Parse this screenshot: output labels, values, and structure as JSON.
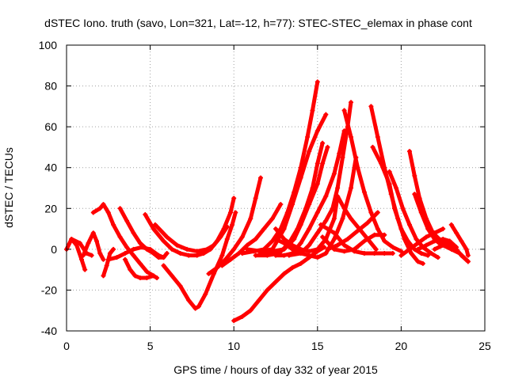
{
  "chart_data": {
    "type": "line",
    "title": "dSTEC Iono. truth (savo, Lon=321, Lat=-12, h=77): STEC-STEC_elemax in phase cont",
    "xlabel": "GPS time / hours of day 332 of year 2015",
    "ylabel": "dSTEC  / TECUs",
    "xlim": [
      0,
      25
    ],
    "ylim": [
      -40,
      100
    ],
    "xticks": [
      0,
      5,
      10,
      15,
      20,
      25
    ],
    "yticks": [
      -40,
      -20,
      0,
      20,
      40,
      60,
      80,
      100
    ],
    "grid": true,
    "marker": "plus",
    "color": "#ff0000",
    "series": [
      {
        "points": [
          [
            0.0,
            0
          ],
          [
            0.3,
            5
          ],
          [
            0.6,
            2
          ],
          [
            0.9,
            -5
          ],
          [
            1.1,
            -10
          ]
        ]
      },
      {
        "points": [
          [
            0.3,
            5
          ],
          [
            0.8,
            3
          ],
          [
            1.2,
            -2
          ],
          [
            1.5,
            -3
          ]
        ]
      },
      {
        "points": [
          [
            1.0,
            -3
          ],
          [
            1.3,
            3
          ],
          [
            1.6,
            8
          ],
          [
            1.8,
            4
          ],
          [
            2.0,
            -2
          ],
          [
            2.2,
            -5
          ]
        ]
      },
      {
        "points": [
          [
            1.6,
            18
          ],
          [
            2.0,
            20
          ],
          [
            2.2,
            22
          ],
          [
            2.5,
            18
          ],
          [
            2.8,
            12
          ],
          [
            3.2,
            6
          ],
          [
            3.6,
            1
          ],
          [
            4.0,
            -3
          ],
          [
            4.4,
            -7
          ],
          [
            4.8,
            -11
          ],
          [
            5.2,
            -13
          ]
        ]
      },
      {
        "points": [
          [
            2.2,
            -13
          ],
          [
            2.4,
            -8
          ],
          [
            2.6,
            -2
          ],
          [
            2.8,
            0
          ]
        ]
      },
      {
        "points": [
          [
            3.2,
            20
          ],
          [
            3.6,
            14
          ],
          [
            4.0,
            8
          ],
          [
            4.4,
            3
          ],
          [
            4.8,
            0
          ],
          [
            5.2,
            -2
          ],
          [
            5.5,
            -4
          ],
          [
            5.8,
            -4
          ],
          [
            6.0,
            -2
          ]
        ]
      },
      {
        "points": [
          [
            3.5,
            -5
          ],
          [
            3.8,
            -10
          ],
          [
            4.1,
            -13
          ],
          [
            4.4,
            -14
          ],
          [
            4.8,
            -14
          ],
          [
            5.2,
            -13
          ],
          [
            5.4,
            -14
          ]
        ]
      },
      {
        "points": [
          [
            2.5,
            -5
          ],
          [
            3.0,
            -4
          ],
          [
            3.5,
            -2
          ],
          [
            4.0,
            0
          ],
          [
            4.5,
            1
          ],
          [
            5.0,
            0
          ],
          [
            5.5,
            -3
          ],
          [
            5.8,
            -4
          ]
        ]
      },
      {
        "points": [
          [
            4.7,
            17
          ],
          [
            5.2,
            10
          ],
          [
            5.8,
            4
          ],
          [
            6.3,
            0
          ],
          [
            6.8,
            -2
          ],
          [
            7.3,
            -3
          ],
          [
            7.8,
            -3
          ],
          [
            8.2,
            -2
          ],
          [
            8.6,
            0
          ],
          [
            9.0,
            4
          ],
          [
            9.4,
            10
          ],
          [
            9.8,
            18
          ],
          [
            10.0,
            25
          ]
        ]
      },
      {
        "points": [
          [
            5.8,
            -8
          ],
          [
            6.3,
            -13
          ],
          [
            6.8,
            -18
          ],
          [
            7.3,
            -25
          ],
          [
            7.7,
            -29
          ],
          [
            7.9,
            -28
          ],
          [
            8.3,
            -22
          ],
          [
            8.8,
            -12
          ],
          [
            9.3,
            -3
          ],
          [
            9.6,
            5
          ],
          [
            9.9,
            12
          ],
          [
            10.1,
            18
          ]
        ]
      },
      {
        "points": [
          [
            5.3,
            12
          ],
          [
            6.0,
            6
          ],
          [
            6.6,
            2
          ],
          [
            7.2,
            0
          ],
          [
            7.8,
            -1
          ],
          [
            8.4,
            0
          ],
          [
            8.8,
            2
          ],
          [
            9.2,
            6
          ],
          [
            9.6,
            11
          ]
        ]
      },
      {
        "points": [
          [
            8.5,
            -12
          ],
          [
            9.0,
            -9
          ],
          [
            9.5,
            -5
          ],
          [
            10.0,
            0
          ],
          [
            10.5,
            6
          ],
          [
            11.0,
            15
          ],
          [
            11.3,
            25
          ],
          [
            11.6,
            35
          ]
        ]
      },
      {
        "points": [
          [
            9.3,
            -8
          ],
          [
            9.8,
            -5
          ],
          [
            10.3,
            -2
          ],
          [
            10.8,
            2
          ],
          [
            11.3,
            5
          ],
          [
            11.8,
            10
          ],
          [
            12.3,
            15
          ],
          [
            12.8,
            22
          ]
        ]
      },
      {
        "points": [
          [
            10.0,
            -35
          ],
          [
            10.5,
            -33
          ],
          [
            11.0,
            -30
          ],
          [
            11.5,
            -25
          ],
          [
            12.0,
            -20
          ],
          [
            12.5,
            -16
          ],
          [
            13.0,
            -12
          ],
          [
            13.5,
            -9
          ],
          [
            14.0,
            -7
          ],
          [
            14.5,
            -4
          ],
          [
            15.0,
            -1
          ],
          [
            15.4,
            1
          ]
        ]
      },
      {
        "points": [
          [
            10.5,
            -2
          ],
          [
            11.2,
            -1
          ],
          [
            11.8,
            0
          ],
          [
            12.3,
            4
          ],
          [
            12.8,
            10
          ],
          [
            13.2,
            18
          ],
          [
            13.6,
            28
          ],
          [
            14.0,
            40
          ],
          [
            14.4,
            55
          ],
          [
            14.7,
            68
          ],
          [
            15.0,
            82
          ]
        ]
      },
      {
        "points": [
          [
            10.8,
            0
          ],
          [
            11.6,
            -1
          ],
          [
            12.3,
            0
          ],
          [
            13.0,
            10
          ],
          [
            13.5,
            22
          ],
          [
            14.0,
            35
          ],
          [
            14.5,
            48
          ],
          [
            15.0,
            58
          ],
          [
            15.5,
            66
          ]
        ]
      },
      {
        "points": [
          [
            11.3,
            -3
          ],
          [
            12.0,
            -3
          ],
          [
            12.7,
            -2
          ],
          [
            13.3,
            3
          ],
          [
            13.8,
            10
          ],
          [
            14.3,
            20
          ],
          [
            14.7,
            30
          ],
          [
            15.0,
            42
          ],
          [
            15.3,
            52
          ]
        ]
      },
      {
        "points": [
          [
            11.6,
            -2
          ],
          [
            12.3,
            -1
          ],
          [
            13.0,
            0
          ],
          [
            13.6,
            5
          ],
          [
            14.0,
            12
          ],
          [
            14.5,
            22
          ],
          [
            15.0,
            32
          ],
          [
            15.3,
            42
          ],
          [
            15.6,
            50
          ]
        ]
      },
      {
        "points": [
          [
            12.5,
            -3
          ],
          [
            13.0,
            -3
          ],
          [
            13.5,
            -2
          ],
          [
            14.0,
            3
          ],
          [
            14.5,
            10
          ],
          [
            15.0,
            18
          ],
          [
            15.5,
            26
          ],
          [
            16.0,
            37
          ],
          [
            16.3,
            47
          ],
          [
            16.6,
            58
          ]
        ]
      },
      {
        "points": [
          [
            13.3,
            -3
          ],
          [
            14.0,
            -2
          ],
          [
            14.5,
            2
          ],
          [
            15.0,
            8
          ],
          [
            15.5,
            14
          ],
          [
            15.9,
            20
          ],
          [
            16.2,
            30
          ],
          [
            16.5,
            45
          ],
          [
            16.8,
            60
          ],
          [
            17.0,
            72
          ]
        ]
      },
      {
        "points": [
          [
            12.5,
            5
          ],
          [
            13.0,
            3
          ],
          [
            13.5,
            0
          ],
          [
            14.0,
            -2
          ],
          [
            14.5,
            -3
          ],
          [
            15.0,
            -4
          ],
          [
            15.5,
            -2
          ],
          [
            16.0,
            5
          ],
          [
            16.5,
            15
          ],
          [
            17.0,
            30
          ],
          [
            17.3,
            45
          ]
        ]
      },
      {
        "points": [
          [
            12.5,
            10
          ],
          [
            13.0,
            5
          ],
          [
            13.5,
            2
          ],
          [
            14.0,
            0
          ],
          [
            14.5,
            -1
          ],
          [
            15.0,
            0
          ],
          [
            15.5,
            5
          ],
          [
            16.0,
            15
          ],
          [
            16.2,
            26
          ],
          [
            16.6,
            20
          ],
          [
            17.0,
            15
          ],
          [
            17.5,
            10
          ],
          [
            18.0,
            5
          ],
          [
            18.5,
            0
          ]
        ]
      },
      {
        "points": [
          [
            15.2,
            12
          ],
          [
            15.6,
            10
          ],
          [
            16.0,
            8
          ],
          [
            16.6,
            2
          ],
          [
            17.2,
            -1
          ],
          [
            17.8,
            -2
          ],
          [
            18.4,
            -2
          ],
          [
            19.0,
            -2
          ],
          [
            19.5,
            -2
          ]
        ]
      },
      {
        "points": [
          [
            15.6,
            0
          ],
          [
            16.2,
            2
          ],
          [
            16.8,
            5
          ],
          [
            17.4,
            9
          ],
          [
            18.0,
            13
          ],
          [
            18.6,
            18
          ]
        ]
      },
      {
        "points": [
          [
            15.3,
            6
          ],
          [
            16.0,
            0
          ],
          [
            16.6,
            -1
          ],
          [
            17.2,
            0
          ],
          [
            17.8,
            4
          ],
          [
            18.4,
            7
          ],
          [
            19.0,
            7
          ]
        ]
      },
      {
        "points": [
          [
            16.6,
            68
          ],
          [
            17.0,
            55
          ],
          [
            17.4,
            40
          ],
          [
            17.8,
            28
          ],
          [
            18.2,
            18
          ],
          [
            18.6,
            10
          ],
          [
            19.0,
            4
          ],
          [
            19.5,
            1
          ],
          [
            20.0,
            -1
          ]
        ]
      },
      {
        "points": [
          [
            18.2,
            70
          ],
          [
            18.6,
            55
          ],
          [
            19.0,
            40
          ],
          [
            19.4,
            27
          ],
          [
            19.8,
            15
          ],
          [
            20.2,
            5
          ],
          [
            20.6,
            -2
          ],
          [
            21.0,
            -6
          ],
          [
            21.3,
            -7
          ]
        ]
      },
      {
        "points": [
          [
            18.3,
            50
          ],
          [
            18.8,
            42
          ],
          [
            19.3,
            32
          ],
          [
            19.6,
            20
          ],
          [
            20.0,
            10
          ],
          [
            20.4,
            4
          ],
          [
            20.8,
            0
          ],
          [
            21.2,
            -2
          ],
          [
            21.6,
            -3
          ]
        ]
      },
      {
        "points": [
          [
            19.3,
            38
          ],
          [
            19.7,
            30
          ],
          [
            20.1,
            20
          ],
          [
            20.5,
            12
          ],
          [
            20.9,
            5
          ],
          [
            21.3,
            1
          ],
          [
            21.8,
            -2
          ],
          [
            22.2,
            -4
          ]
        ]
      },
      {
        "points": [
          [
            20.5,
            48
          ],
          [
            20.8,
            36
          ],
          [
            21.1,
            25
          ],
          [
            21.5,
            15
          ],
          [
            21.9,
            8
          ],
          [
            22.4,
            4
          ],
          [
            22.9,
            2
          ],
          [
            23.3,
            0
          ],
          [
            23.6,
            -3
          ],
          [
            24.0,
            -6
          ]
        ]
      },
      {
        "points": [
          [
            20.8,
            27
          ],
          [
            21.2,
            18
          ],
          [
            21.6,
            10
          ],
          [
            22.0,
            5
          ],
          [
            22.4,
            2
          ]
        ]
      },
      {
        "points": [
          [
            21.0,
            0
          ],
          [
            21.5,
            2
          ],
          [
            22.0,
            4
          ],
          [
            22.5,
            5
          ],
          [
            22.9,
            4
          ],
          [
            23.3,
            1
          ]
        ]
      },
      {
        "points": [
          [
            20.0,
            -3
          ],
          [
            20.5,
            0
          ],
          [
            21.0,
            3
          ],
          [
            21.5,
            6
          ],
          [
            22.0,
            8
          ],
          [
            22.5,
            10
          ]
        ]
      },
      {
        "points": [
          [
            23.0,
            12
          ],
          [
            23.3,
            8
          ],
          [
            23.6,
            4
          ],
          [
            23.9,
            0
          ],
          [
            24.0,
            -3
          ]
        ]
      },
      {
        "points": [
          [
            22.0,
            0
          ],
          [
            22.5,
            2
          ],
          [
            23.0,
            0
          ],
          [
            23.5,
            -2
          ],
          [
            24.0,
            -6
          ]
        ]
      }
    ]
  }
}
